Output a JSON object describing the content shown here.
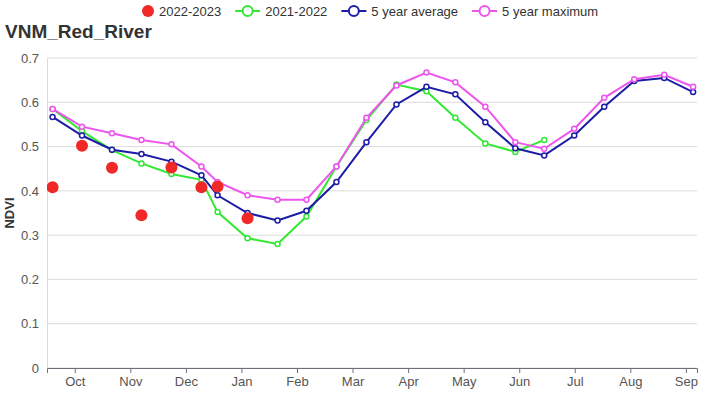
{
  "chart_data": {
    "type": "line",
    "title": "VNM_Red_River",
    "y_label": "NDVI",
    "x": [
      0.1,
      0.63,
      1.17,
      1.7,
      2.24,
      2.78,
      3.07,
      3.61,
      4.15,
      4.67,
      5.21,
      5.75,
      6.29,
      6.83,
      7.35,
      7.89,
      8.43,
      8.95,
      9.49,
      10.03,
      10.57,
      11.11,
      11.63
    ],
    "xlim": [
      0,
      11.7
    ],
    "xticks": [
      {
        "value": 0.5,
        "label": "Oct"
      },
      {
        "value": 1.5,
        "label": "Nov"
      },
      {
        "value": 2.5,
        "label": "Dec"
      },
      {
        "value": 3.5,
        "label": "Jan"
      },
      {
        "value": 4.5,
        "label": "Feb"
      },
      {
        "value": 5.5,
        "label": "Mar"
      },
      {
        "value": 6.5,
        "label": "Apr"
      },
      {
        "value": 7.5,
        "label": "May"
      },
      {
        "value": 8.5,
        "label": "Jun"
      },
      {
        "value": 9.5,
        "label": "Jul"
      },
      {
        "value": 10.5,
        "label": "Aug"
      },
      {
        "value": 11.5,
        "label": "Sep"
      }
    ],
    "ylim": [
      0,
      0.7
    ],
    "yticks": [
      0,
      0.1,
      0.2,
      0.3,
      0.4,
      0.5,
      0.6,
      0.7
    ],
    "grid": true,
    "legend": "top",
    "series": [
      {
        "name": "2022-2023",
        "type": "scatter",
        "marker": "circle",
        "color": "#f02828",
        "values": [
          0.408,
          0.502,
          0.452,
          0.345,
          0.453,
          0.408,
          0.41,
          0.338,
          null,
          null,
          null,
          null,
          null,
          null,
          null,
          null,
          null,
          null,
          null,
          null,
          null,
          null,
          null
        ]
      },
      {
        "name": "2021-2022",
        "type": "line",
        "marker": "circle",
        "color": "#33e833",
        "values": [
          0.585,
          0.535,
          0.492,
          0.462,
          0.438,
          0.425,
          0.352,
          0.293,
          0.28,
          0.342,
          0.455,
          0.56,
          0.64,
          0.625,
          0.565,
          0.507,
          0.488,
          0.515,
          null,
          null,
          null,
          null,
          null
        ]
      },
      {
        "name": "5 year average",
        "type": "line",
        "marker": "circle",
        "color": "#1c1ca6",
        "values": [
          0.567,
          0.525,
          0.493,
          0.483,
          0.466,
          0.435,
          0.39,
          0.35,
          0.333,
          0.355,
          0.42,
          0.51,
          0.595,
          0.635,
          0.618,
          0.555,
          0.496,
          0.48,
          0.525,
          0.59,
          0.648,
          0.655,
          0.623
        ]
      },
      {
        "name": "5 year maximum",
        "type": "line",
        "marker": "circle",
        "color": "#ee55ee",
        "values": [
          0.585,
          0.545,
          0.53,
          0.515,
          0.505,
          0.455,
          0.42,
          0.39,
          0.38,
          0.38,
          0.455,
          0.565,
          0.638,
          0.667,
          0.645,
          0.59,
          0.51,
          0.495,
          0.54,
          0.61,
          0.652,
          0.662,
          0.635
        ]
      }
    ]
  }
}
